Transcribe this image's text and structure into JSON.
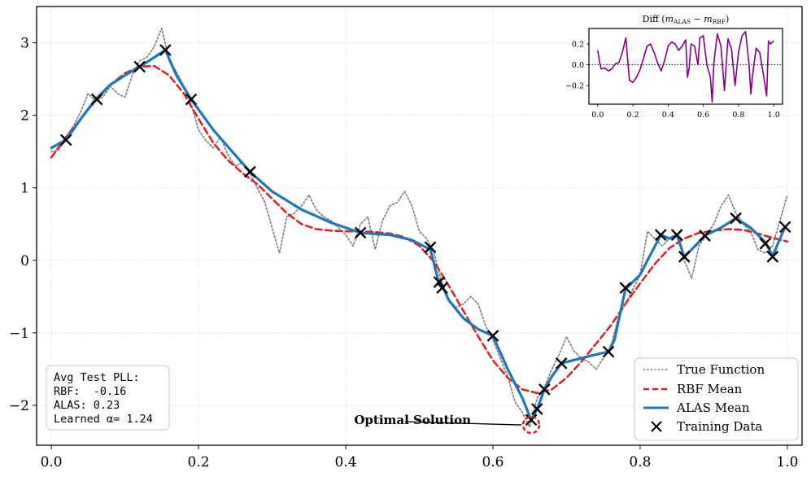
{
  "chart_data": {
    "type": "line",
    "xlim": [
      -0.02,
      1.02
    ],
    "ylim": [
      -2.55,
      3.5
    ],
    "x_ticks": [
      "0.0",
      "0.2",
      "0.4",
      "0.6",
      "0.8",
      "1.0"
    ],
    "x_tick_values": [
      0.0,
      0.2,
      0.4,
      0.6,
      0.8,
      1.0
    ],
    "y_ticks": [
      "−2",
      "−1",
      "0",
      "1",
      "2",
      "3"
    ],
    "y_tick_values": [
      -2,
      -1,
      0,
      1,
      2,
      3
    ],
    "grid": true,
    "legend_position": "lower-right",
    "series": [
      {
        "name": "True Function",
        "style": "dotted",
        "color": "#808080",
        "x": [
          0.0,
          0.01,
          0.02,
          0.03,
          0.04,
          0.05,
          0.06,
          0.07,
          0.08,
          0.09,
          0.1,
          0.11,
          0.12,
          0.13,
          0.14,
          0.15,
          0.16,
          0.17,
          0.18,
          0.19,
          0.2,
          0.21,
          0.22,
          0.23,
          0.24,
          0.25,
          0.26,
          0.27,
          0.28,
          0.29,
          0.3,
          0.31,
          0.32,
          0.33,
          0.34,
          0.35,
          0.36,
          0.37,
          0.38,
          0.39,
          0.4,
          0.41,
          0.42,
          0.43,
          0.44,
          0.45,
          0.46,
          0.47,
          0.48,
          0.49,
          0.5,
          0.51,
          0.52,
          0.53,
          0.54,
          0.55,
          0.56,
          0.57,
          0.58,
          0.59,
          0.6,
          0.61,
          0.62,
          0.63,
          0.64,
          0.65,
          0.66,
          0.67,
          0.68,
          0.69,
          0.7,
          0.71,
          0.72,
          0.73,
          0.74,
          0.75,
          0.76,
          0.77,
          0.78,
          0.79,
          0.8,
          0.81,
          0.82,
          0.83,
          0.84,
          0.85,
          0.86,
          0.87,
          0.88,
          0.89,
          0.9,
          0.91,
          0.92,
          0.93,
          0.94,
          0.95,
          0.96,
          0.97,
          0.98,
          0.99,
          1.0
        ],
        "y": [
          1.5,
          1.52,
          1.7,
          1.85,
          2.05,
          2.3,
          2.2,
          2.25,
          2.4,
          2.3,
          2.25,
          2.55,
          2.75,
          2.8,
          2.95,
          3.2,
          2.75,
          2.6,
          2.4,
          2.15,
          1.8,
          1.65,
          1.55,
          1.7,
          1.45,
          1.3,
          1.35,
          1.2,
          1.0,
          0.8,
          0.45,
          0.1,
          0.6,
          0.65,
          0.75,
          0.9,
          0.7,
          0.6,
          0.55,
          0.45,
          0.35,
          0.2,
          0.5,
          0.6,
          0.15,
          0.55,
          0.75,
          0.8,
          0.95,
          0.75,
          0.4,
          0.3,
          0.1,
          -0.3,
          -0.55,
          -0.65,
          -0.6,
          -0.5,
          -0.6,
          -0.9,
          -1.1,
          -1.35,
          -1.6,
          -1.95,
          -2.1,
          -2.3,
          -1.9,
          -1.75,
          -1.5,
          -1.3,
          -1.05,
          -1.25,
          -1.35,
          -1.4,
          -1.5,
          -1.35,
          -1.2,
          -0.8,
          -0.6,
          -0.4,
          -0.2,
          0.4,
          0.3,
          0.2,
          0.3,
          0.35,
          0.0,
          -0.25,
          0.2,
          0.35,
          0.5,
          0.75,
          0.9,
          0.65,
          0.5,
          0.4,
          0.15,
          0.1,
          0.2,
          0.55,
          0.9
        ]
      },
      {
        "name": "RBF Mean",
        "style": "dashed",
        "color": "#d62728",
        "x": [
          0.0,
          0.02,
          0.04,
          0.06,
          0.08,
          0.1,
          0.12,
          0.14,
          0.16,
          0.18,
          0.2,
          0.22,
          0.24,
          0.26,
          0.28,
          0.3,
          0.32,
          0.34,
          0.36,
          0.38,
          0.4,
          0.42,
          0.44,
          0.46,
          0.48,
          0.5,
          0.52,
          0.54,
          0.56,
          0.58,
          0.6,
          0.62,
          0.64,
          0.66,
          0.68,
          0.7,
          0.72,
          0.74,
          0.76,
          0.78,
          0.8,
          0.82,
          0.84,
          0.86,
          0.88,
          0.9,
          0.92,
          0.94,
          0.96,
          0.98,
          1.0
        ],
        "y": [
          1.42,
          1.7,
          1.95,
          2.2,
          2.42,
          2.58,
          2.67,
          2.68,
          2.55,
          2.3,
          1.95,
          1.62,
          1.38,
          1.2,
          1.05,
          0.85,
          0.65,
          0.5,
          0.43,
          0.41,
          0.4,
          0.4,
          0.39,
          0.37,
          0.32,
          0.2,
          -0.02,
          -0.35,
          -0.7,
          -1.05,
          -1.38,
          -1.62,
          -1.78,
          -1.83,
          -1.78,
          -1.62,
          -1.4,
          -1.15,
          -0.9,
          -0.6,
          -0.32,
          -0.05,
          0.17,
          0.3,
          0.38,
          0.41,
          0.43,
          0.42,
          0.37,
          0.31,
          0.26
        ]
      },
      {
        "name": "ALAS Mean",
        "style": "solid",
        "color": "#1f77b4",
        "x": [
          0.0,
          0.02,
          0.04,
          0.06,
          0.08,
          0.1,
          0.12,
          0.14,
          0.155,
          0.17,
          0.19,
          0.22,
          0.25,
          0.27,
          0.3,
          0.34,
          0.38,
          0.42,
          0.46,
          0.49,
          0.505,
          0.515,
          0.525,
          0.53,
          0.54,
          0.56,
          0.58,
          0.6,
          0.62,
          0.64,
          0.652,
          0.66,
          0.67,
          0.68,
          0.693,
          0.72,
          0.74,
          0.757,
          0.765,
          0.78,
          0.8,
          0.81,
          0.828,
          0.84,
          0.85,
          0.86,
          0.87,
          0.888,
          0.91,
          0.93,
          0.95,
          0.97,
          0.98,
          0.99,
          0.997
        ],
        "y": [
          1.55,
          1.66,
          1.95,
          2.22,
          2.42,
          2.55,
          2.67,
          2.8,
          2.9,
          2.55,
          2.22,
          1.8,
          1.45,
          1.22,
          0.95,
          0.7,
          0.52,
          0.38,
          0.35,
          0.28,
          0.2,
          0.15,
          -0.25,
          -0.32,
          -0.55,
          -0.8,
          -0.95,
          -1.04,
          -1.5,
          -1.9,
          -2.2,
          -2.05,
          -1.78,
          -1.6,
          -1.42,
          -1.35,
          -1.3,
          -1.26,
          -1.1,
          -0.4,
          -0.2,
          0.0,
          0.35,
          0.3,
          0.35,
          0.05,
          0.15,
          0.34,
          0.45,
          0.58,
          0.45,
          0.25,
          0.06,
          0.3,
          0.46
        ]
      }
    ],
    "training_data": {
      "name": "Training Data",
      "marker": "x",
      "x": [
        0.02,
        0.062,
        0.12,
        0.155,
        0.19,
        0.27,
        0.42,
        0.515,
        0.527,
        0.531,
        0.6,
        0.652,
        0.66,
        0.67,
        0.693,
        0.757,
        0.78,
        0.828,
        0.85,
        0.86,
        0.888,
        0.93,
        0.97,
        0.98,
        0.997
      ],
      "y": [
        1.66,
        2.22,
        2.67,
        2.9,
        2.22,
        1.22,
        0.38,
        0.18,
        -0.3,
        -0.38,
        -1.04,
        -2.2,
        -2.05,
        -1.78,
        -1.42,
        -1.26,
        -0.38,
        0.35,
        0.35,
        0.05,
        0.34,
        0.58,
        0.23,
        0.05,
        0.46
      ]
    },
    "annotations": [
      {
        "text": "Optimal Solution",
        "x": 0.652,
        "y": -2.27,
        "marker": "dashed-circle"
      }
    ],
    "stats_box": [
      "Avg Test PLL:",
      "RBF:  -0.16",
      "ALAS: 0.23",
      "Learned α= 1.24"
    ],
    "inset": {
      "title_prefix": "Diff (",
      "m_symbol": "m",
      "sub1": "ALAS",
      "minus": " − ",
      "sub2": "RBF",
      "title_suffix": ")",
      "xlim": [
        -0.05,
        1.05
      ],
      "ylim": [
        -0.38,
        0.35
      ],
      "x_ticks": [
        "0.0",
        "0.2",
        "0.4",
        "0.6",
        "0.8",
        "1.0"
      ],
      "x_tick_values": [
        0.0,
        0.2,
        0.4,
        0.6,
        0.8,
        1.0
      ],
      "y_ticks": [
        "0.2",
        "0.0",
        "−0.2"
      ],
      "y_tick_values": [
        0.2,
        0.0,
        -0.2
      ],
      "color": "#800080",
      "reference_line": 0.0,
      "x": [
        0.0,
        0.01,
        0.02,
        0.04,
        0.06,
        0.08,
        0.1,
        0.12,
        0.14,
        0.16,
        0.17,
        0.18,
        0.2,
        0.22,
        0.24,
        0.26,
        0.28,
        0.3,
        0.32,
        0.34,
        0.36,
        0.38,
        0.4,
        0.42,
        0.44,
        0.46,
        0.48,
        0.5,
        0.51,
        0.52,
        0.53,
        0.55,
        0.57,
        0.58,
        0.6,
        0.62,
        0.64,
        0.65,
        0.66,
        0.68,
        0.7,
        0.72,
        0.74,
        0.76,
        0.78,
        0.8,
        0.82,
        0.84,
        0.86,
        0.87,
        0.88,
        0.9,
        0.92,
        0.94,
        0.96,
        0.97,
        0.98,
        1.0
      ],
      "y": [
        0.14,
        0.03,
        -0.04,
        -0.03,
        -0.06,
        -0.04,
        0.01,
        0.02,
        0.12,
        0.26,
        0.05,
        -0.15,
        -0.17,
        -0.12,
        -0.05,
        0.06,
        0.18,
        0.2,
        0.12,
        0.02,
        -0.06,
        0.04,
        0.18,
        0.22,
        0.2,
        0.14,
        0.18,
        0.24,
        -0.12,
        -0.03,
        0.2,
        0.18,
        0.0,
        0.26,
        0.28,
        0.0,
        -0.12,
        -0.36,
        0.02,
        0.3,
        0.18,
        -0.25,
        0.25,
        0.15,
        -0.2,
        0.12,
        0.28,
        0.32,
        0.0,
        -0.28,
        -0.1,
        0.16,
        0.12,
        -0.08,
        -0.3,
        0.23,
        0.2,
        0.23
      ]
    }
  }
}
